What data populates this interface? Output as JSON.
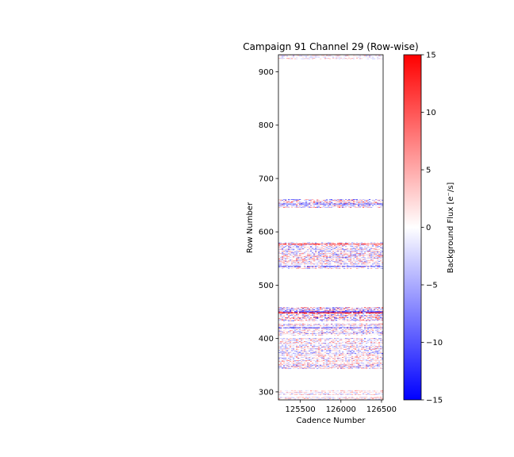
{
  "chart_data": {
    "type": "heatmap",
    "title": "Campaign 91 Channel 29 (Row-wise)",
    "xlabel": "Cadence Number",
    "ylabel": "Row Number",
    "xlim": [
      125230,
      126520
    ],
    "ylim": [
      285,
      932
    ],
    "x_ticks": [
      125500,
      126000,
      126500
    ],
    "y_ticks": [
      300,
      400,
      500,
      600,
      700,
      800,
      900
    ],
    "colorbar": {
      "label": "Background Flux [e⁻/s]",
      "colormap": "bwr",
      "range": [
        -15,
        15
      ],
      "ticks": [
        -15,
        -10,
        -5,
        0,
        5,
        10,
        15
      ]
    },
    "row_bands": [
      {
        "rows": [
          286,
          304
        ],
        "intensity": 0.35
      },
      {
        "rows": [
          343,
          400
        ],
        "intensity": 0.55
      },
      {
        "rows": [
          405,
          427
        ],
        "intensity": 0.55
      },
      {
        "rows": [
          433,
          458
        ],
        "intensity": 0.8
      },
      {
        "rows": [
          531,
          579
        ],
        "intensity": 0.6
      },
      {
        "rows": [
          645,
          660
        ],
        "intensity": 0.75
      },
      {
        "rows": [
          924,
          932
        ],
        "intensity": 0.35
      }
    ],
    "strong_rows": [
      {
        "row": 448,
        "value": 14
      },
      {
        "row": 450,
        "value": -12
      },
      {
        "row": 577,
        "value": 10
      },
      {
        "row": 535,
        "value": -9
      },
      {
        "row": 652,
        "value": -8
      },
      {
        "row": 420,
        "value": -8
      }
    ]
  }
}
